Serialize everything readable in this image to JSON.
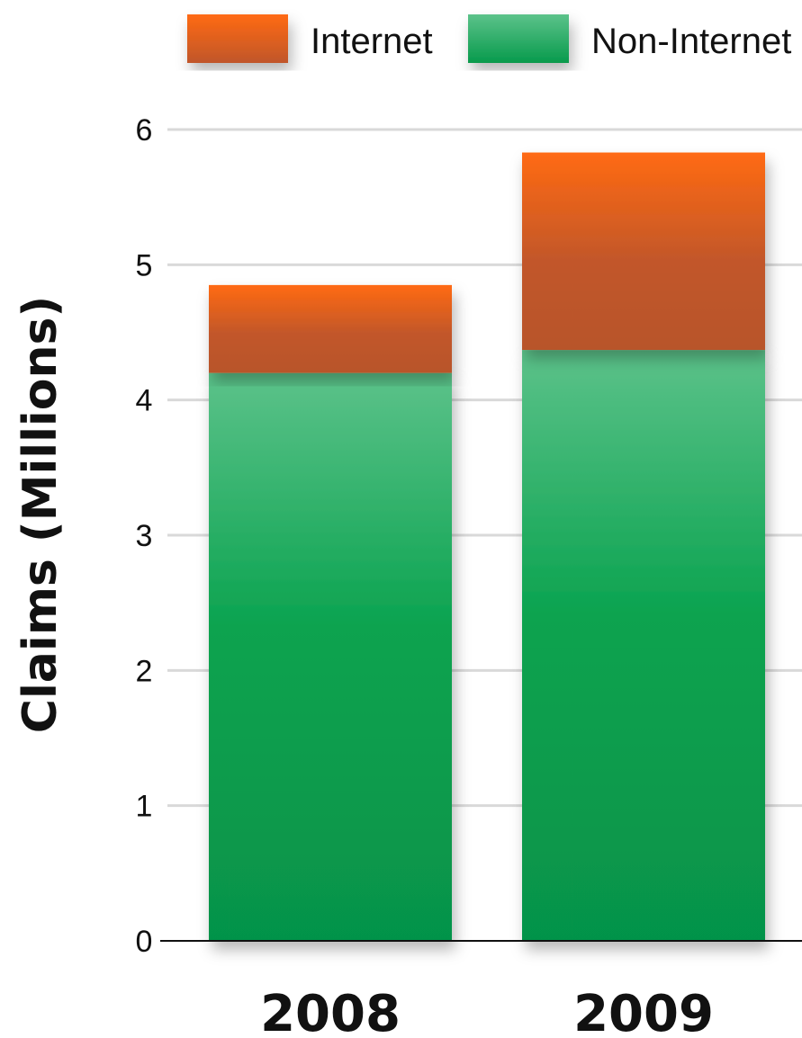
{
  "chart_data": {
    "type": "bar",
    "stacked": true,
    "categories": [
      "2008",
      "2009"
    ],
    "series": [
      {
        "name": "Non-Internet",
        "values": [
          4.2,
          4.37
        ],
        "color": "#0aa04f"
      },
      {
        "name": "Internet",
        "values": [
          0.65,
          1.46
        ],
        "color": "#f06020"
      }
    ],
    "ylabel": "Claims (Millions)",
    "ylim": [
      0,
      6
    ],
    "yticks": [
      "0",
      "1",
      "2",
      "3",
      "4",
      "5",
      "6"
    ],
    "grid": true,
    "legend": "top"
  }
}
